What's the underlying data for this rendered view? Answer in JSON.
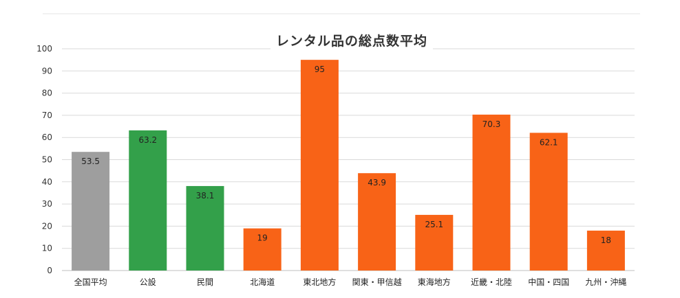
{
  "chart_data": {
    "type": "bar",
    "title": "レンタル品の総点数平均",
    "xlabel": "",
    "ylabel": "",
    "ylim": [
      0,
      100
    ],
    "yticks": [
      0,
      10,
      20,
      30,
      40,
      50,
      60,
      70,
      80,
      90,
      100
    ],
    "grid": true,
    "legend": "none",
    "categories": [
      "全国平均",
      "公設",
      "民間",
      "北海道",
      "東北地方",
      "関東・甲信越",
      "東海地方",
      "近畿・北陸",
      "中国・四国",
      "九州・沖縄"
    ],
    "values": [
      53.5,
      63.2,
      38.1,
      19,
      95,
      43.9,
      25.1,
      70.3,
      62.1,
      18
    ],
    "bar_colors": [
      "#9e9e9e",
      "#33a04a",
      "#33a04a",
      "#f86317",
      "#f86317",
      "#f86317",
      "#f86317",
      "#f86317",
      "#f86317",
      "#f86317"
    ],
    "grid_color": "#d9d9d9"
  }
}
